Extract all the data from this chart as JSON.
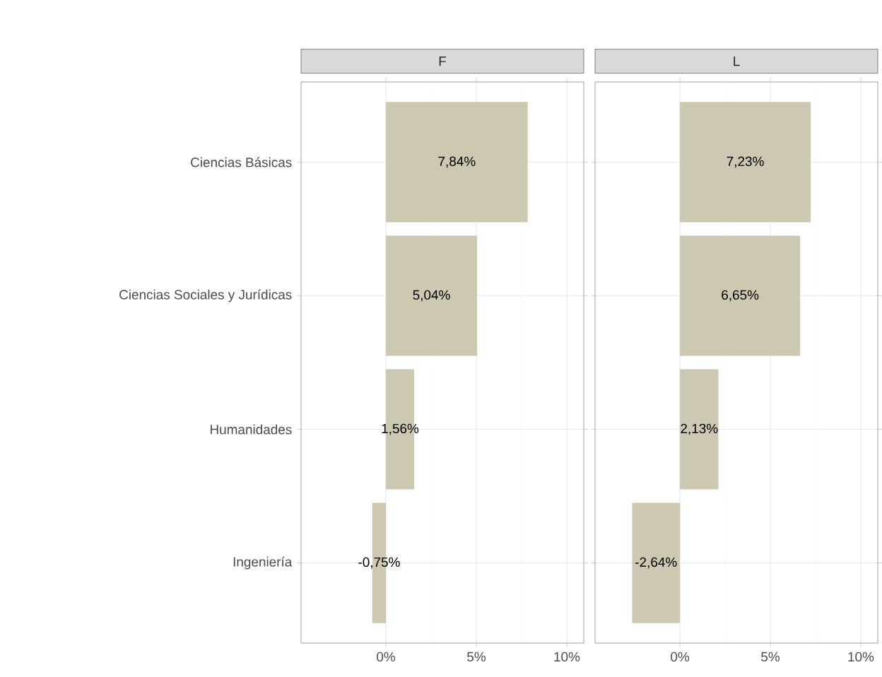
{
  "chart_data": [
    {
      "type": "bar",
      "orientation": "horizontal",
      "title": "F",
      "categories": [
        "Ciencias Básicas",
        "Ciencias Sociales y Jurídicas",
        "Humanidades",
        "Ingeniería"
      ],
      "values": [
        7.84,
        5.04,
        1.56,
        -0.75
      ],
      "value_labels": [
        "7,84%",
        "5,04%",
        "1,56%",
        "-0,75%"
      ],
      "color": "#cdc8b1",
      "xlim": [
        -4.69,
        10.94
      ],
      "xticks": [
        {
          "value": 0,
          "label": "0%"
        },
        {
          "value": 5,
          "label": "5%"
        },
        {
          "value": 10,
          "label": "10%"
        }
      ],
      "grid": true
    },
    {
      "type": "bar",
      "orientation": "horizontal",
      "title": "L",
      "categories": [
        null,
        null,
        null,
        null
      ],
      "values": [
        7.23,
        6.65,
        2.13,
        -2.64
      ],
      "value_labels": [
        "7,23%",
        "6,65%",
        "2,13%",
        "-2,64%"
      ],
      "color": "#cdc8b1",
      "xlim": [
        -4.69,
        10.94
      ],
      "xticks": [
        {
          "value": 0,
          "label": "0%"
        },
        {
          "value": 5,
          "label": "5%"
        },
        {
          "value": 10,
          "label": "10%"
        }
      ],
      "grid": true
    }
  ]
}
